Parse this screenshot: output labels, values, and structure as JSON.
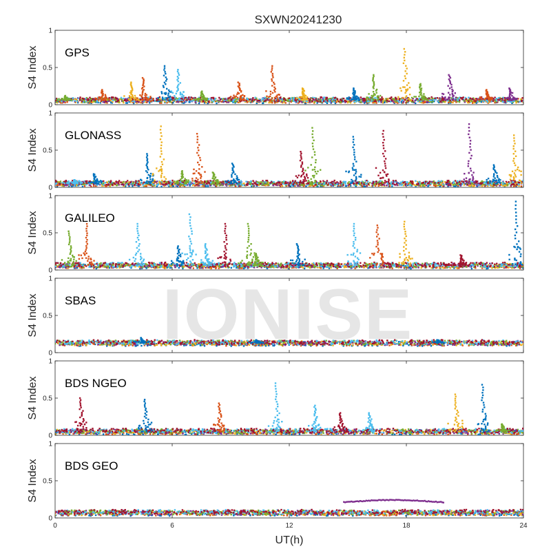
{
  "figure": {
    "title": "SXWN20241230",
    "xlabel": "UT(h)",
    "watermark": "IONISE"
  },
  "chart_data": {
    "type": "scatter",
    "title": "SXWN20241230",
    "xlabel": "UT(h)",
    "ylabel": "S4 Index",
    "xlim": [
      0,
      24
    ],
    "ylim": [
      0,
      1
    ],
    "xticks": [
      0,
      6,
      12,
      18,
      24
    ],
    "yticks": [
      0,
      0.5,
      1
    ],
    "grid": false,
    "colors": [
      "#0072BD",
      "#D95319",
      "#EDB120",
      "#7E2F8E",
      "#77AC30",
      "#4DBEEE",
      "#A2142F"
    ],
    "panels": [
      {
        "label": "GPS",
        "baseline": 0.06,
        "spikes": [
          {
            "x": 0.5,
            "y": 0.12,
            "c": 4
          },
          {
            "x": 2.4,
            "y": 0.2,
            "c": 1
          },
          {
            "x": 3.9,
            "y": 0.3,
            "c": 2
          },
          {
            "x": 4.5,
            "y": 0.36,
            "c": 1
          },
          {
            "x": 5.6,
            "y": 0.52,
            "c": 0
          },
          {
            "x": 6.3,
            "y": 0.47,
            "c": 5
          },
          {
            "x": 7.5,
            "y": 0.18,
            "c": 4
          },
          {
            "x": 9.4,
            "y": 0.3,
            "c": 1
          },
          {
            "x": 11.1,
            "y": 0.52,
            "c": 1
          },
          {
            "x": 12.7,
            "y": 0.22,
            "c": 2
          },
          {
            "x": 15.3,
            "y": 0.22,
            "c": 0
          },
          {
            "x": 16.3,
            "y": 0.4,
            "c": 4
          },
          {
            "x": 17.9,
            "y": 0.75,
            "c": 2
          },
          {
            "x": 18.7,
            "y": 0.28,
            "c": 4
          },
          {
            "x": 20.2,
            "y": 0.4,
            "c": 3
          },
          {
            "x": 22.1,
            "y": 0.2,
            "c": 1
          },
          {
            "x": 23.3,
            "y": 0.22,
            "c": 3
          }
        ]
      },
      {
        "label": "GLONASS",
        "baseline": 0.05,
        "spikes": [
          {
            "x": 1.0,
            "y": 0.1,
            "c": 5
          },
          {
            "x": 2.0,
            "y": 0.18,
            "c": 0
          },
          {
            "x": 4.7,
            "y": 0.45,
            "c": 0
          },
          {
            "x": 5.4,
            "y": 0.82,
            "c": 2
          },
          {
            "x": 6.5,
            "y": 0.22,
            "c": 4
          },
          {
            "x": 7.3,
            "y": 0.72,
            "c": 1
          },
          {
            "x": 8.1,
            "y": 0.2,
            "c": 4
          },
          {
            "x": 9.1,
            "y": 0.32,
            "c": 0
          },
          {
            "x": 12.6,
            "y": 0.48,
            "c": 6
          },
          {
            "x": 13.2,
            "y": 0.8,
            "c": 4
          },
          {
            "x": 15.3,
            "y": 0.68,
            "c": 0
          },
          {
            "x": 16.8,
            "y": 0.76,
            "c": 6
          },
          {
            "x": 21.2,
            "y": 0.85,
            "c": 3
          },
          {
            "x": 22.5,
            "y": 0.3,
            "c": 0
          },
          {
            "x": 23.5,
            "y": 0.7,
            "c": 2
          }
        ]
      },
      {
        "label": "GALILEO",
        "baseline": 0.06,
        "spikes": [
          {
            "x": 0.7,
            "y": 0.52,
            "c": 4
          },
          {
            "x": 1.6,
            "y": 0.62,
            "c": 1
          },
          {
            "x": 4.2,
            "y": 0.62,
            "c": 5
          },
          {
            "x": 6.3,
            "y": 0.32,
            "c": 0
          },
          {
            "x": 6.9,
            "y": 0.75,
            "c": 5
          },
          {
            "x": 7.7,
            "y": 0.35,
            "c": 5
          },
          {
            "x": 8.7,
            "y": 0.62,
            "c": 6
          },
          {
            "x": 9.9,
            "y": 0.62,
            "c": 4
          },
          {
            "x": 10.3,
            "y": 0.2,
            "c": 4
          },
          {
            "x": 12.4,
            "y": 0.35,
            "c": 0
          },
          {
            "x": 15.3,
            "y": 0.62,
            "c": 5
          },
          {
            "x": 16.5,
            "y": 0.6,
            "c": 1
          },
          {
            "x": 17.9,
            "y": 0.65,
            "c": 2
          },
          {
            "x": 20.8,
            "y": 0.2,
            "c": 6
          },
          {
            "x": 23.6,
            "y": 0.92,
            "c": 0
          }
        ]
      },
      {
        "label": "SBAS",
        "baseline": 0.13,
        "spikes": [
          {
            "x": 4.4,
            "y": 0.2,
            "c": 0
          },
          {
            "x": 10.3,
            "y": 0.17,
            "c": 0
          },
          {
            "x": 19.6,
            "y": 0.17,
            "c": 0
          }
        ]
      },
      {
        "label": "BDS NGEO",
        "baseline": 0.05,
        "spikes": [
          {
            "x": 1.3,
            "y": 0.5,
            "c": 6
          },
          {
            "x": 4.6,
            "y": 0.48,
            "c": 0
          },
          {
            "x": 8.4,
            "y": 0.43,
            "c": 1
          },
          {
            "x": 11.3,
            "y": 0.7,
            "c": 5
          },
          {
            "x": 13.3,
            "y": 0.4,
            "c": 5
          },
          {
            "x": 14.6,
            "y": 0.3,
            "c": 6
          },
          {
            "x": 16.1,
            "y": 0.3,
            "c": 5
          },
          {
            "x": 20.5,
            "y": 0.55,
            "c": 2
          },
          {
            "x": 21.9,
            "y": 0.68,
            "c": 0
          },
          {
            "x": 22.9,
            "y": 0.15,
            "c": 4
          }
        ]
      },
      {
        "label": "BDS GEO",
        "baseline": 0.07,
        "spikes": [],
        "arc": {
          "x0": 14.8,
          "x1": 19.9,
          "y0": 0.21,
          "y1": 0.24,
          "c": 3
        }
      }
    ]
  }
}
